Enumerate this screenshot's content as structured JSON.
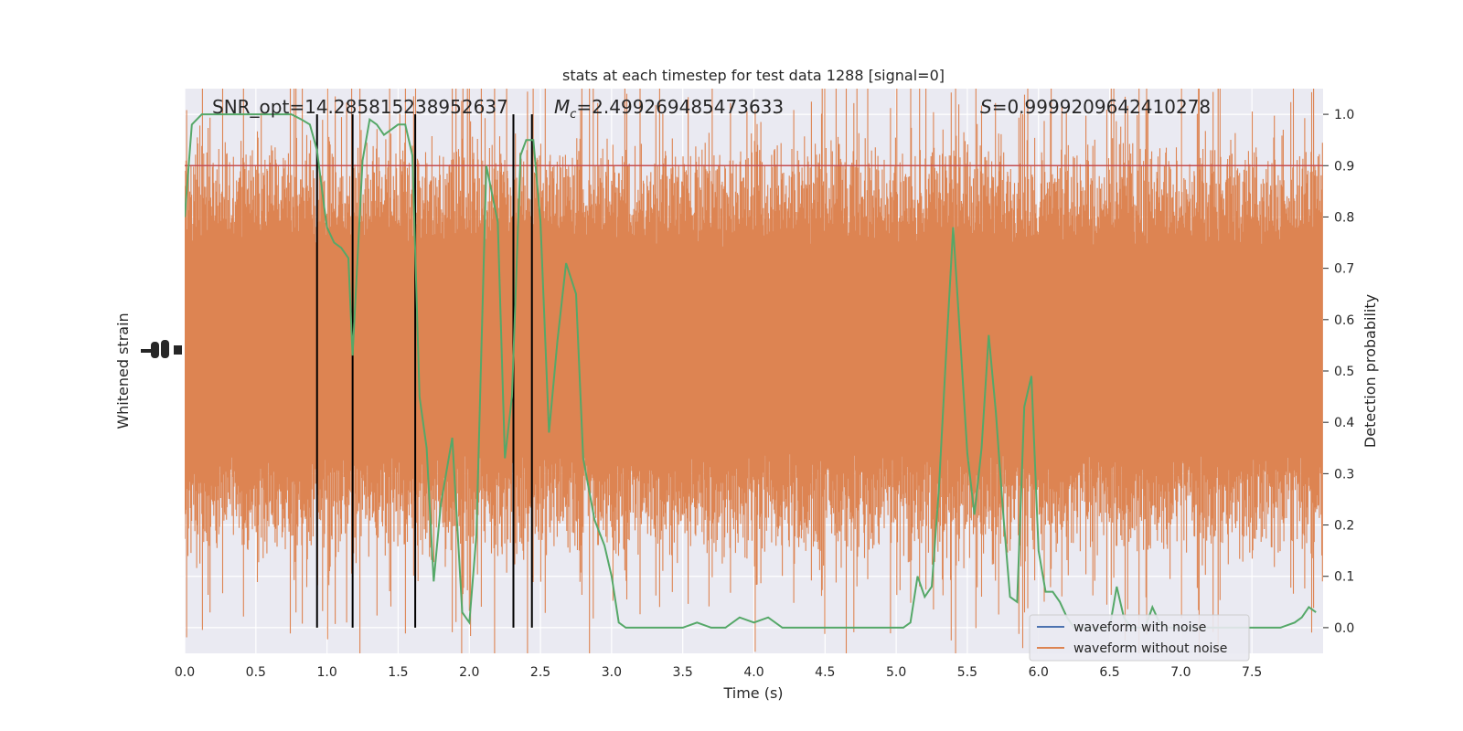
{
  "chart_data": {
    "type": "line",
    "title": "stats at each timestep for test data 1288 [signal=0]",
    "xlabel": "Time (s)",
    "ylabel_left": "Whitened strain",
    "ylabel_right": "Detection probability",
    "xlim": [
      0.0,
      8.0
    ],
    "ylim_right": [
      -0.05,
      1.05
    ],
    "ylim_left_offset_label": "1e-18",
    "x_ticks": [
      "0.0",
      "0.5",
      "1.0",
      "1.5",
      "2.0",
      "2.5",
      "3.0",
      "3.5",
      "4.0",
      "4.5",
      "5.0",
      "5.5",
      "6.0",
      "6.5",
      "7.0",
      "7.5"
    ],
    "y_ticks_right": [
      "0.0",
      "0.1",
      "0.2",
      "0.3",
      "0.4",
      "0.5",
      "0.6",
      "0.7",
      "0.8",
      "0.9",
      "1.0"
    ],
    "threshold": 0.9,
    "annotations": [
      {
        "prefix": "SNR_opt=",
        "value": "14.285815238952637"
      },
      {
        "prefix": "M",
        "sub": "c",
        "value": "=2.499269485473633"
      },
      {
        "prefix": "S",
        "value": "=0.9999209642410278"
      }
    ],
    "vertical_markers": [
      0.93,
      1.18,
      1.62,
      2.31,
      2.44
    ],
    "series": [
      {
        "name": "waveform with noise",
        "color": "#4c72b0",
        "type": "strain"
      },
      {
        "name": "waveform without noise",
        "color": "#dd8452",
        "type": "strain"
      },
      {
        "color": "#55a868",
        "type": "probability",
        "x": [
          0.0,
          0.05,
          0.12,
          0.2,
          0.3,
          0.45,
          0.6,
          0.75,
          0.82,
          0.88,
          0.93,
          0.98,
          1.0,
          1.05,
          1.1,
          1.15,
          1.18,
          1.25,
          1.3,
          1.35,
          1.4,
          1.45,
          1.5,
          1.55,
          1.6,
          1.65,
          1.7,
          1.75,
          1.8,
          1.88,
          1.95,
          2.0,
          2.05,
          2.12,
          2.2,
          2.25,
          2.3,
          2.36,
          2.4,
          2.45,
          2.5,
          2.56,
          2.62,
          2.68,
          2.75,
          2.8,
          2.88,
          2.95,
          3.0,
          3.05,
          3.1,
          3.15,
          3.2,
          3.3,
          3.4,
          3.5,
          3.6,
          3.7,
          3.8,
          3.9,
          4.0,
          4.1,
          4.2,
          4.3,
          4.4,
          4.5,
          4.6,
          4.7,
          4.8,
          4.9,
          5.0,
          5.05,
          5.1,
          5.15,
          5.2,
          5.25,
          5.3,
          5.35,
          5.4,
          5.45,
          5.5,
          5.55,
          5.6,
          5.65,
          5.7,
          5.75,
          5.8,
          5.85,
          5.9,
          5.95,
          6.0,
          6.05,
          6.1,
          6.15,
          6.2,
          6.25,
          6.3,
          6.35,
          6.4,
          6.45,
          6.5,
          6.55,
          6.6,
          6.65,
          6.7,
          6.75,
          6.8,
          6.85,
          6.9,
          6.95,
          7.0,
          7.1,
          7.2,
          7.3,
          7.4,
          7.5,
          7.6,
          7.7,
          7.8,
          7.85,
          7.9,
          7.95
        ],
        "y": [
          0.8,
          0.98,
          1.0,
          1.0,
          1.0,
          1.0,
          1.0,
          1.0,
          0.99,
          0.98,
          0.93,
          0.82,
          0.78,
          0.75,
          0.74,
          0.72,
          0.53,
          0.91,
          0.99,
          0.98,
          0.96,
          0.97,
          0.98,
          0.98,
          0.92,
          0.45,
          0.35,
          0.09,
          0.24,
          0.37,
          0.03,
          0.01,
          0.18,
          0.9,
          0.79,
          0.33,
          0.45,
          0.92,
          0.95,
          0.95,
          0.79,
          0.38,
          0.56,
          0.71,
          0.65,
          0.33,
          0.21,
          0.16,
          0.1,
          0.01,
          0.0,
          0.0,
          0.0,
          0.0,
          0.0,
          0.0,
          0.01,
          0.0,
          0.0,
          0.02,
          0.01,
          0.02,
          0.0,
          0.0,
          0.0,
          0.0,
          0.0,
          0.0,
          0.0,
          0.0,
          0.0,
          0.0,
          0.01,
          0.1,
          0.06,
          0.08,
          0.27,
          0.53,
          0.78,
          0.56,
          0.34,
          0.22,
          0.35,
          0.57,
          0.42,
          0.23,
          0.06,
          0.05,
          0.43,
          0.49,
          0.15,
          0.07,
          0.07,
          0.05,
          0.02,
          0.0,
          0.0,
          0.0,
          0.0,
          0.0,
          0.0,
          0.08,
          0.02,
          0.0,
          0.0,
          0.0,
          0.04,
          0.01,
          0.0,
          0.0,
          0.0,
          0.0,
          0.0,
          0.0,
          0.0,
          0.0,
          0.0,
          0.0,
          0.01,
          0.02,
          0.04,
          0.03
        ]
      },
      {
        "color": "#c44e52",
        "type": "threshold",
        "y": 0.9
      }
    ]
  }
}
